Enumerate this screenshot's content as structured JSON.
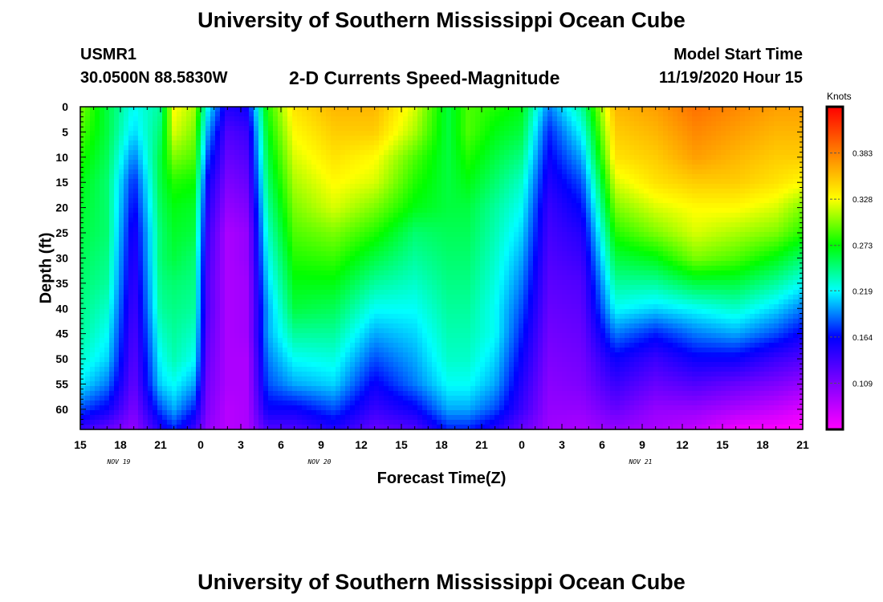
{
  "header": {
    "title": "University of Southern Mississippi Ocean Cube",
    "station_id": "USMR1",
    "station_coords": "30.0500N 88.5830W",
    "chart_title": "2-D Currents Speed-Magnitude",
    "start_label": "Model Start Time",
    "start_value": "11/19/2020 Hour 15"
  },
  "footer": {
    "title": "University of Southern Mississippi Ocean Cube"
  },
  "chart_data": {
    "type": "heatmap",
    "title": "2-D Currents Speed-Magnitude",
    "xlabel": "Forecast Time(Z)",
    "ylabel": "Depth (ft)",
    "y_range": [
      0,
      64
    ],
    "y_ticks": [
      0,
      5,
      10,
      15,
      20,
      25,
      30,
      35,
      40,
      45,
      50,
      55,
      60
    ],
    "x_range_hours_from_start": [
      0,
      54
    ],
    "x_tick_labels": [
      "15",
      "18",
      "21",
      "0",
      "3",
      "6",
      "9",
      "12",
      "15",
      "18",
      "21",
      "0",
      "3",
      "6",
      "9",
      "12",
      "15",
      "18",
      "21"
    ],
    "date_labels": [
      {
        "label": "NOV  19",
        "at_tick": 1
      },
      {
        "label": "NOV  20",
        "at_tick": 6
      },
      {
        "label": "NOV  21",
        "at_tick": 14
      }
    ],
    "colorbar": {
      "unit": "Knots",
      "min": 0.054,
      "max": 0.438,
      "ticks": [
        0.109,
        0.164,
        0.219,
        0.273,
        0.328,
        0.383
      ],
      "colors": [
        "#ff00ff",
        "#8000ff",
        "#0000ff",
        "#00ffff",
        "#00ff00",
        "#ffff00",
        "#ff8000",
        "#ff0000"
      ]
    },
    "depths": [
      0,
      5,
      10,
      15,
      20,
      25,
      30,
      35,
      40,
      45,
      50,
      55,
      60,
      64
    ],
    "series": [
      {
        "x": 0,
        "values": [
          0.3,
          0.29,
          0.28,
          0.27,
          0.265,
          0.26,
          0.255,
          0.25,
          0.245,
          0.24,
          0.23,
          0.215,
          0.18,
          0.14
        ]
      },
      {
        "x": 2,
        "values": [
          0.26,
          0.26,
          0.255,
          0.25,
          0.25,
          0.25,
          0.245,
          0.24,
          0.23,
          0.22,
          0.21,
          0.19,
          0.16,
          0.12
        ]
      },
      {
        "x": 4,
        "values": [
          0.22,
          0.21,
          0.19,
          0.17,
          0.16,
          0.15,
          0.145,
          0.14,
          0.135,
          0.13,
          0.125,
          0.12,
          0.11,
          0.1
        ]
      },
      {
        "x": 6,
        "values": [
          0.24,
          0.25,
          0.26,
          0.26,
          0.255,
          0.25,
          0.25,
          0.245,
          0.24,
          0.23,
          0.22,
          0.21,
          0.18,
          0.15
        ]
      },
      {
        "x": 7,
        "values": [
          0.33,
          0.32,
          0.3,
          0.28,
          0.27,
          0.265,
          0.26,
          0.25,
          0.245,
          0.24,
          0.235,
          0.22,
          0.2,
          0.17
        ]
      },
      {
        "x": 8.5,
        "values": [
          0.31,
          0.3,
          0.29,
          0.275,
          0.265,
          0.26,
          0.25,
          0.245,
          0.24,
          0.23,
          0.22,
          0.2,
          0.17,
          0.14
        ]
      },
      {
        "x": 9.5,
        "values": [
          0.22,
          0.2,
          0.18,
          0.16,
          0.15,
          0.14,
          0.135,
          0.13,
          0.13,
          0.125,
          0.12,
          0.115,
          0.11,
          0.1
        ]
      },
      {
        "x": 11,
        "values": [
          0.15,
          0.13,
          0.12,
          0.11,
          0.1,
          0.09,
          0.09,
          0.09,
          0.09,
          0.09,
          0.09,
          0.09,
          0.085,
          0.085
        ]
      },
      {
        "x": 12.5,
        "values": [
          0.16,
          0.14,
          0.13,
          0.12,
          0.11,
          0.1,
          0.1,
          0.095,
          0.095,
          0.095,
          0.09,
          0.09,
          0.09,
          0.09
        ]
      },
      {
        "x": 14,
        "values": [
          0.28,
          0.27,
          0.26,
          0.25,
          0.24,
          0.23,
          0.22,
          0.21,
          0.2,
          0.2,
          0.19,
          0.18,
          0.16,
          0.13
        ]
      },
      {
        "x": 16,
        "values": [
          0.34,
          0.33,
          0.32,
          0.31,
          0.3,
          0.29,
          0.28,
          0.27,
          0.26,
          0.24,
          0.22,
          0.2,
          0.16,
          0.13
        ]
      },
      {
        "x": 19,
        "values": [
          0.36,
          0.35,
          0.34,
          0.33,
          0.32,
          0.3,
          0.285,
          0.27,
          0.255,
          0.24,
          0.225,
          0.21,
          0.18,
          0.15
        ]
      },
      {
        "x": 22,
        "values": [
          0.36,
          0.35,
          0.33,
          0.32,
          0.3,
          0.28,
          0.26,
          0.24,
          0.22,
          0.2,
          0.18,
          0.16,
          0.14,
          0.12
        ]
      },
      {
        "x": 25,
        "values": [
          0.32,
          0.31,
          0.29,
          0.28,
          0.27,
          0.25,
          0.24,
          0.23,
          0.22,
          0.21,
          0.2,
          0.19,
          0.16,
          0.13
        ]
      },
      {
        "x": 27.5,
        "values": [
          0.26,
          0.26,
          0.26,
          0.26,
          0.26,
          0.255,
          0.25,
          0.245,
          0.24,
          0.235,
          0.23,
          0.22,
          0.2,
          0.17
        ]
      },
      {
        "x": 29,
        "values": [
          0.29,
          0.29,
          0.28,
          0.27,
          0.26,
          0.255,
          0.25,
          0.245,
          0.24,
          0.235,
          0.23,
          0.22,
          0.2,
          0.17
        ]
      },
      {
        "x": 31,
        "values": [
          0.28,
          0.27,
          0.26,
          0.25,
          0.24,
          0.235,
          0.23,
          0.225,
          0.22,
          0.22,
          0.21,
          0.2,
          0.18,
          0.15
        ]
      },
      {
        "x": 33,
        "values": [
          0.27,
          0.26,
          0.245,
          0.23,
          0.22,
          0.21,
          0.2,
          0.19,
          0.18,
          0.17,
          0.16,
          0.15,
          0.14,
          0.12
        ]
      },
      {
        "x": 35,
        "values": [
          0.19,
          0.17,
          0.16,
          0.15,
          0.14,
          0.135,
          0.13,
          0.125,
          0.12,
          0.115,
          0.11,
          0.105,
          0.1,
          0.095
        ]
      },
      {
        "x": 37.5,
        "values": [
          0.24,
          0.22,
          0.2,
          0.18,
          0.165,
          0.15,
          0.14,
          0.13,
          0.125,
          0.12,
          0.115,
          0.11,
          0.1,
          0.09
        ]
      },
      {
        "x": 40,
        "values": [
          0.36,
          0.35,
          0.34,
          0.32,
          0.3,
          0.28,
          0.26,
          0.24,
          0.22,
          0.19,
          0.16,
          0.14,
          0.12,
          0.1
        ]
      },
      {
        "x": 43,
        "values": [
          0.37,
          0.36,
          0.35,
          0.34,
          0.32,
          0.3,
          0.27,
          0.24,
          0.21,
          0.17,
          0.14,
          0.12,
          0.1,
          0.09
        ]
      },
      {
        "x": 46,
        "values": [
          0.39,
          0.38,
          0.37,
          0.35,
          0.33,
          0.32,
          0.3,
          0.26,
          0.22,
          0.19,
          0.16,
          0.13,
          0.1,
          0.08
        ]
      },
      {
        "x": 49,
        "values": [
          0.38,
          0.37,
          0.36,
          0.35,
          0.33,
          0.31,
          0.29,
          0.26,
          0.23,
          0.2,
          0.16,
          0.12,
          0.09,
          0.06
        ]
      },
      {
        "x": 52,
        "values": [
          0.37,
          0.36,
          0.35,
          0.34,
          0.32,
          0.3,
          0.27,
          0.24,
          0.21,
          0.18,
          0.14,
          0.11,
          0.08,
          0.055
        ]
      },
      {
        "x": 54,
        "values": [
          0.37,
          0.36,
          0.35,
          0.33,
          0.3,
          0.28,
          0.25,
          0.22,
          0.19,
          0.16,
          0.13,
          0.1,
          0.07,
          0.05
        ]
      }
    ]
  }
}
